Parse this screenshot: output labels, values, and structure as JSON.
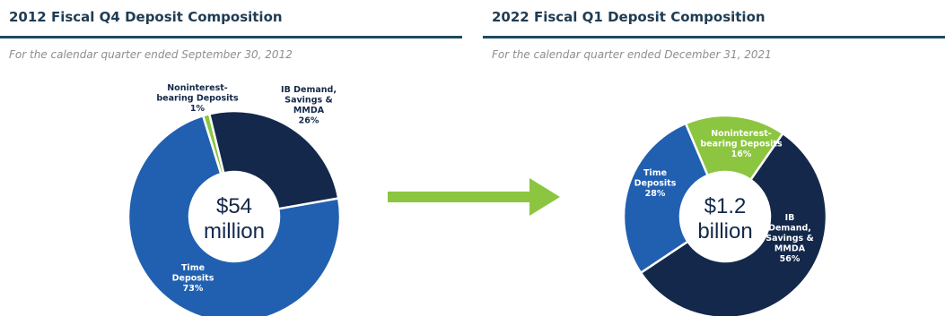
{
  "left_panel": {
    "title": "2012 Fiscal Q4 Deposit Composition",
    "subtitle": "For the calendar quarter ended September 30, 2012",
    "center_value": "$54",
    "center_unit": "million"
  },
  "right_panel": {
    "title": "2022 Fiscal Q1 Deposit Composition",
    "subtitle": "For the calendar quarter ended December 31, 2021",
    "center_value": "$1.2",
    "center_unit": "billion"
  },
  "colors": {
    "time_deposits": "#2160b0",
    "ib_demand": "#13284a",
    "noninterest": "#8cc540",
    "title": "#1f3c53",
    "rule": "#1c4b63",
    "arrow": "#8cc540"
  },
  "chart_data": [
    {
      "type": "pie",
      "title": "2012 Fiscal Q4 Deposit Composition",
      "subtitle": "For the calendar quarter ended September 30, 2012",
      "categories": [
        "Noninterest-bearing Deposits",
        "IB Demand, Savings & MMDA",
        "Time Deposits"
      ],
      "values": [
        1,
        26,
        73
      ],
      "unit": "%",
      "center_label": [
        "$54",
        "million"
      ],
      "slice_labels": [
        [
          "Noninterest-",
          "bearing Deposits",
          "1%"
        ],
        [
          "IB Demand,",
          "Savings &",
          "MMDA",
          "26%"
        ],
        [
          "Time",
          "Deposits",
          "73%"
        ]
      ]
    },
    {
      "type": "pie",
      "title": "2022 Fiscal Q1 Deposit Composition",
      "subtitle": "For the calendar quarter ended December 31, 2021",
      "categories": [
        "Noninterest-bearing Deposits",
        "IB Demand, Savings & MMDA",
        "Time Deposits"
      ],
      "values": [
        16,
        56,
        28
      ],
      "unit": "%",
      "center_label": [
        "$1.2",
        "billion"
      ],
      "slice_labels": [
        [
          "Noninterest-",
          "bearing Deposits",
          "16%"
        ],
        [
          "IB",
          "Demand,",
          "Savings &",
          "MMDA",
          "56%"
        ],
        [
          "Time",
          "Deposits",
          "28%"
        ]
      ]
    }
  ]
}
